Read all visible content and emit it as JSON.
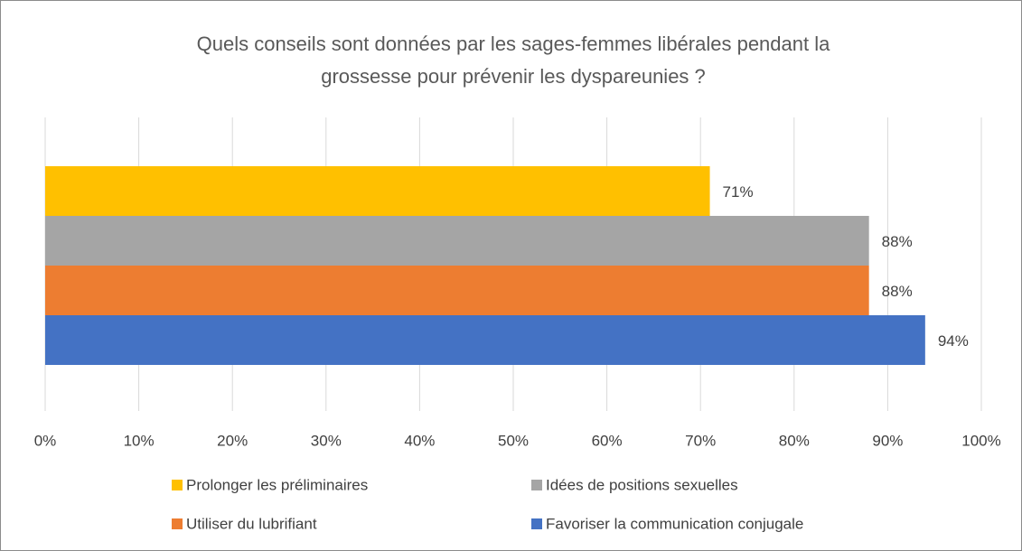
{
  "chart_data": {
    "type": "bar",
    "orientation": "horizontal",
    "title": [
      "Quels conseils sont données par les sages-femmes libérales pendant la",
      "grossesse pour prévenir les dyspareunies ?"
    ],
    "series": [
      {
        "name": "Prolonger les préliminaires",
        "color": "#ffc000",
        "values": [
          71
        ],
        "value_labels": [
          "71%"
        ]
      },
      {
        "name": "Idées de positions sexuelles",
        "color": "#a5a5a5",
        "values": [
          88
        ],
        "value_labels": [
          "88%"
        ]
      },
      {
        "name": "Utiliser du lubrifiant",
        "color": "#ed7d31",
        "values": [
          88
        ],
        "value_labels": [
          "88%"
        ]
      },
      {
        "name": "Favoriser la communication conjugale",
        "color": "#4472c4",
        "values": [
          94
        ],
        "value_labels": [
          "94%"
        ]
      }
    ],
    "xlim": [
      0,
      100
    ],
    "xticks": [
      {
        "value": 0,
        "label": "0%"
      },
      {
        "value": 10,
        "label": "10%"
      },
      {
        "value": 20,
        "label": "20%"
      },
      {
        "value": 30,
        "label": "30%"
      },
      {
        "value": 40,
        "label": "40%"
      },
      {
        "value": 50,
        "label": "50%"
      },
      {
        "value": 60,
        "label": "60%"
      },
      {
        "value": 70,
        "label": "70%"
      },
      {
        "value": 80,
        "label": "80%"
      },
      {
        "value": 90,
        "label": "90%"
      },
      {
        "value": 100,
        "label": "100%"
      }
    ],
    "grid": true,
    "legend": "bottom"
  }
}
